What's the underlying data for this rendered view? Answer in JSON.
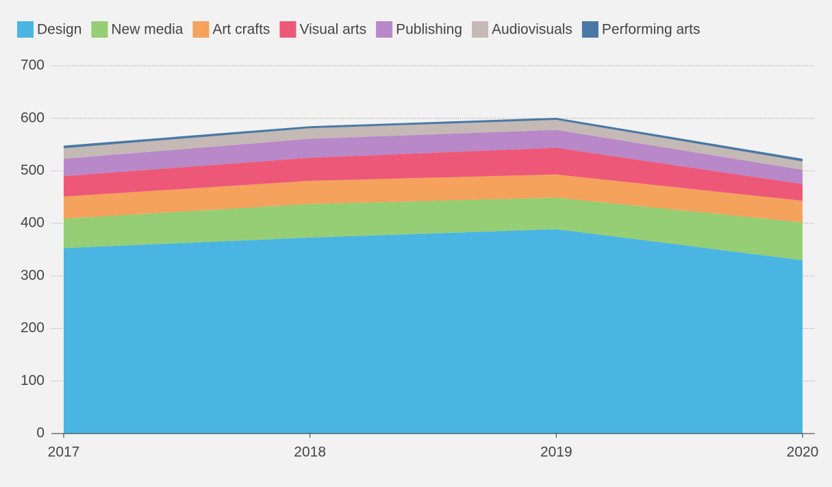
{
  "chart_data": {
    "type": "area",
    "stacked": true,
    "x": [
      2017,
      2018,
      2019,
      2020
    ],
    "xlim": [
      2017,
      2020
    ],
    "xticks": [
      2017,
      2018,
      2019,
      2020
    ],
    "ylim": [
      0,
      700
    ],
    "yticks": [
      0,
      100,
      200,
      300,
      400,
      500,
      600,
      700
    ],
    "grid": true,
    "legend": "top",
    "series": [
      {
        "name": "Design",
        "color": "#4ab5e3",
        "values": [
          353,
          373,
          389,
          330
        ]
      },
      {
        "name": "New media",
        "color": "#95ce74",
        "values": [
          56,
          64,
          60,
          72
        ]
      },
      {
        "name": "Art crafts",
        "color": "#f5a25d",
        "values": [
          42,
          44,
          44,
          41
        ]
      },
      {
        "name": "Visual arts",
        "color": "#ee5878",
        "values": [
          39,
          44,
          51,
          32
        ]
      },
      {
        "name": "Publishing",
        "color": "#b888c8",
        "values": [
          33,
          36,
          34,
          27
        ]
      },
      {
        "name": "Audiovisuals",
        "color": "#c5b9b5",
        "values": [
          20,
          20,
          19,
          16
        ]
      },
      {
        "name": "Performing arts",
        "color": "#4a79a5",
        "values": [
          5,
          4,
          4,
          5
        ]
      }
    ]
  }
}
